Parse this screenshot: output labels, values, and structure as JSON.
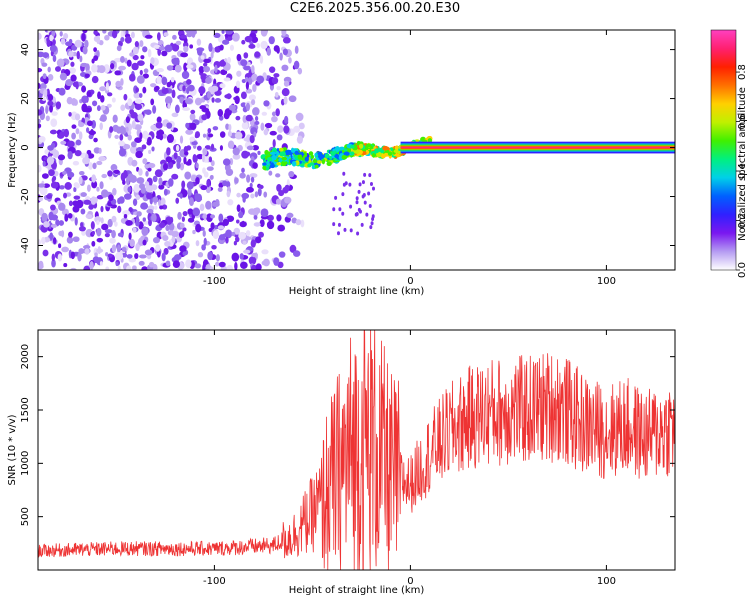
{
  "title": "C2E6.2025.356.00.20.E30",
  "chart_data": [
    {
      "type": "heatmap",
      "name": "spectrogram",
      "xlabel": "Height of straight line (km)",
      "ylabel": "Frequency (Hz)",
      "xlim": [
        -190,
        135
      ],
      "ylim": [
        -50,
        48
      ],
      "xticks": [
        -100,
        0,
        100
      ],
      "yticks": [
        -40,
        -20,
        0,
        20,
        40
      ],
      "colorbar": {
        "label": "Normalized spectral amplitude",
        "range": [
          0.0,
          0.97
        ],
        "ticks": [
          "0.0",
          "0.2",
          "0.4",
          "0.6",
          "0.8"
        ],
        "colors": [
          "#ffffff",
          "#b59cf2",
          "#7a18f0",
          "#3020ff",
          "#0060ff",
          "#00d0e8",
          "#00f080",
          "#40f000",
          "#c0f000",
          "#ffd000",
          "#ff7000",
          "#ff2000",
          "#ff2070",
          "#ff40c0"
        ]
      },
      "regions": [
        {
          "desc": "noise speckle",
          "x": [
            -190,
            -50
          ],
          "y": [
            -50,
            48
          ],
          "amplitude": 0.15
        },
        {
          "desc": "signal onset",
          "x": [
            -75,
            10
          ],
          "y": [
            -12,
            6
          ],
          "amplitude": 0.5
        },
        {
          "desc": "carrier line",
          "x": [
            -5,
            135
          ],
          "y": [
            -1,
            1
          ],
          "amplitude": 0.95
        }
      ]
    },
    {
      "type": "line",
      "name": "snr",
      "xlabel": "Height of straight line (km)",
      "ylabel": "SNR (10 * v/v)",
      "xlim": [
        -190,
        135
      ],
      "ylim": [
        0,
        2250
      ],
      "xticks": [
        -100,
        0,
        100
      ],
      "yticks": [
        500,
        1000,
        1500,
        2000
      ],
      "color": "#ee3333",
      "series": [
        {
          "name": "SNR",
          "x": [
            -190,
            -150,
            -100,
            -70,
            -60,
            -50,
            -40,
            -30,
            -20,
            -10,
            0,
            10,
            20,
            30,
            40,
            60,
            75,
            90,
            100,
            110,
            120,
            135
          ],
          "values": [
            180,
            200,
            200,
            230,
            320,
            520,
            800,
            1100,
            1200,
            900,
            800,
            1100,
            1300,
            1420,
            1480,
            1500,
            1550,
            1350,
            1300,
            1350,
            1250,
            1350
          ]
        }
      ]
    }
  ]
}
